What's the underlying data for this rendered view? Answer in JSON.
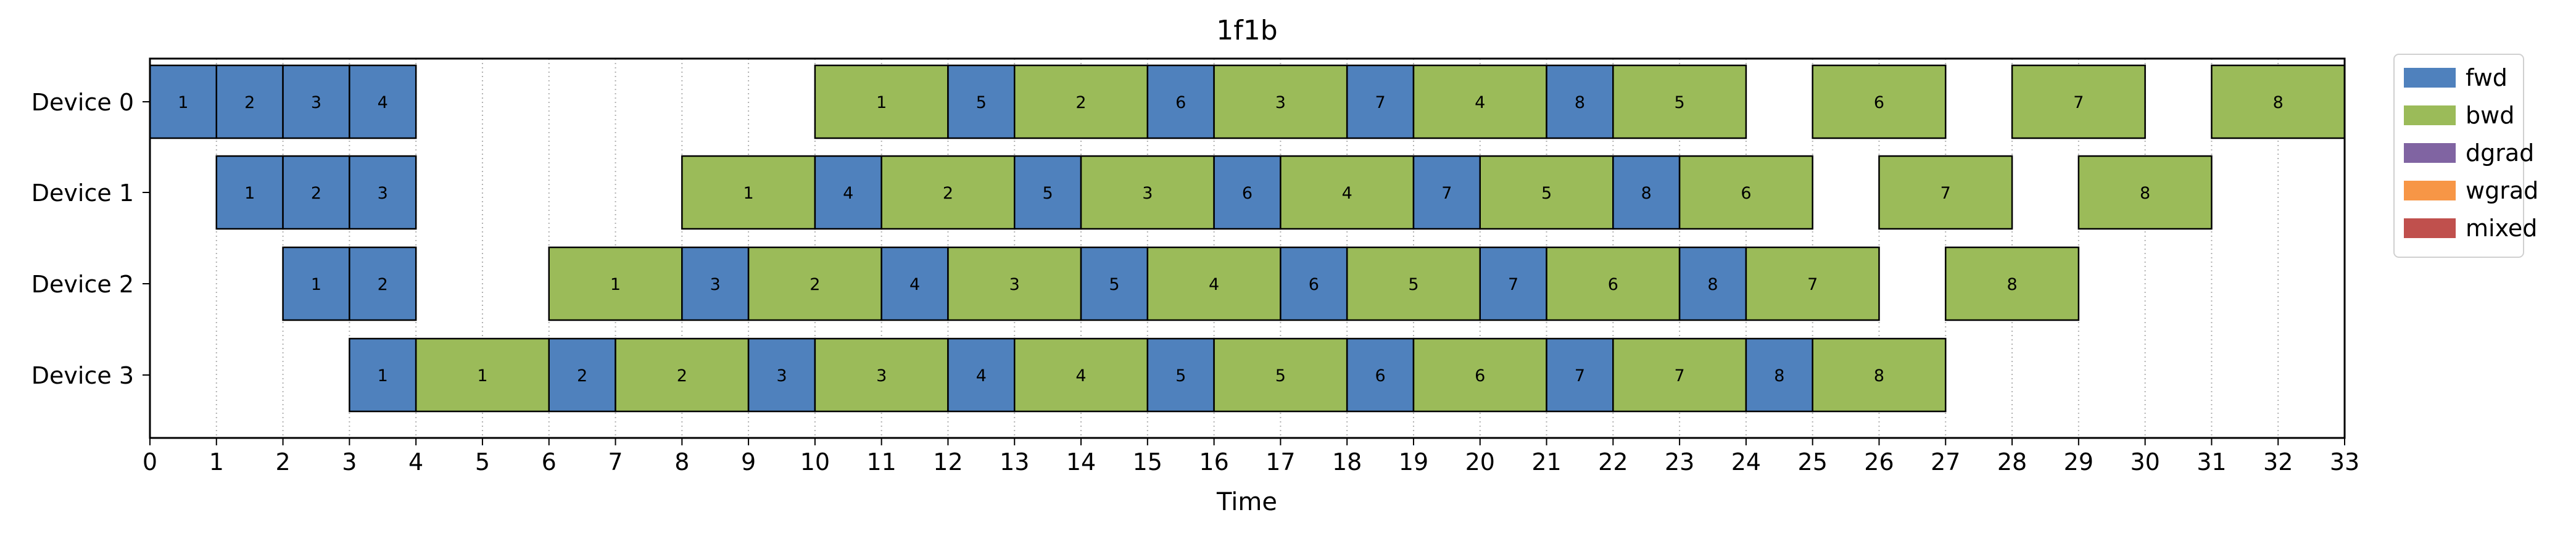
{
  "chart_data": {
    "type": "gantt",
    "title": "1f1b",
    "xlabel": "Time",
    "ylabel": "",
    "xlim": [
      0,
      33
    ],
    "x_ticks": [
      0,
      1,
      2,
      3,
      4,
      5,
      6,
      7,
      8,
      9,
      10,
      11,
      12,
      13,
      14,
      15,
      16,
      17,
      18,
      19,
      20,
      21,
      22,
      23,
      24,
      25,
      26,
      27,
      28,
      29,
      30,
      31,
      32,
      33
    ],
    "grid": "vertical dotted at each integer tick",
    "categories": [
      "Device 0",
      "Device 1",
      "Device 2",
      "Device 3"
    ],
    "legend": {
      "placement": "outside top-right",
      "entries": [
        {
          "label": "fwd",
          "color": "#4f81bd"
        },
        {
          "label": "bwd",
          "color": "#9bbb59"
        },
        {
          "label": "dgrad",
          "color": "#8064a2"
        },
        {
          "label": "wgrad",
          "color": "#f79646"
        },
        {
          "label": "mixed",
          "color": "#c0504d"
        }
      ]
    },
    "colors": {
      "fwd": "#4f81bd",
      "bwd": "#9bbb59",
      "dgrad": "#8064a2",
      "wgrad": "#f79646",
      "mixed": "#c0504d"
    },
    "series": [
      {
        "name": "Device 0",
        "tasks": [
          {
            "type": "fwd",
            "label": "1",
            "start": 0,
            "end": 1
          },
          {
            "type": "fwd",
            "label": "2",
            "start": 1,
            "end": 2
          },
          {
            "type": "fwd",
            "label": "3",
            "start": 2,
            "end": 3
          },
          {
            "type": "fwd",
            "label": "4",
            "start": 3,
            "end": 4
          },
          {
            "type": "bwd",
            "label": "1",
            "start": 10,
            "end": 12
          },
          {
            "type": "fwd",
            "label": "5",
            "start": 12,
            "end": 13
          },
          {
            "type": "bwd",
            "label": "2",
            "start": 13,
            "end": 15
          },
          {
            "type": "fwd",
            "label": "6",
            "start": 15,
            "end": 16
          },
          {
            "type": "bwd",
            "label": "3",
            "start": 16,
            "end": 18
          },
          {
            "type": "fwd",
            "label": "7",
            "start": 18,
            "end": 19
          },
          {
            "type": "bwd",
            "label": "4",
            "start": 19,
            "end": 21
          },
          {
            "type": "fwd",
            "label": "8",
            "start": 21,
            "end": 22
          },
          {
            "type": "bwd",
            "label": "5",
            "start": 22,
            "end": 24
          },
          {
            "type": "bwd",
            "label": "6",
            "start": 25,
            "end": 27
          },
          {
            "type": "bwd",
            "label": "7",
            "start": 28,
            "end": 30
          },
          {
            "type": "bwd",
            "label": "8",
            "start": 31,
            "end": 33
          }
        ]
      },
      {
        "name": "Device 1",
        "tasks": [
          {
            "type": "fwd",
            "label": "1",
            "start": 1,
            "end": 2
          },
          {
            "type": "fwd",
            "label": "2",
            "start": 2,
            "end": 3
          },
          {
            "type": "fwd",
            "label": "3",
            "start": 3,
            "end": 4
          },
          {
            "type": "bwd",
            "label": "1",
            "start": 8,
            "end": 10
          },
          {
            "type": "fwd",
            "label": "4",
            "start": 10,
            "end": 11
          },
          {
            "type": "bwd",
            "label": "2",
            "start": 11,
            "end": 13
          },
          {
            "type": "fwd",
            "label": "5",
            "start": 13,
            "end": 14
          },
          {
            "type": "bwd",
            "label": "3",
            "start": 14,
            "end": 16
          },
          {
            "type": "fwd",
            "label": "6",
            "start": 16,
            "end": 17
          },
          {
            "type": "bwd",
            "label": "4",
            "start": 17,
            "end": 19
          },
          {
            "type": "fwd",
            "label": "7",
            "start": 19,
            "end": 20
          },
          {
            "type": "bwd",
            "label": "5",
            "start": 20,
            "end": 22
          },
          {
            "type": "fwd",
            "label": "8",
            "start": 22,
            "end": 23
          },
          {
            "type": "bwd",
            "label": "6",
            "start": 23,
            "end": 25
          },
          {
            "type": "bwd",
            "label": "7",
            "start": 26,
            "end": 28
          },
          {
            "type": "bwd",
            "label": "8",
            "start": 29,
            "end": 31
          }
        ]
      },
      {
        "name": "Device 2",
        "tasks": [
          {
            "type": "fwd",
            "label": "1",
            "start": 2,
            "end": 3
          },
          {
            "type": "fwd",
            "label": "2",
            "start": 3,
            "end": 4
          },
          {
            "type": "bwd",
            "label": "1",
            "start": 6,
            "end": 8
          },
          {
            "type": "fwd",
            "label": "3",
            "start": 8,
            "end": 9
          },
          {
            "type": "bwd",
            "label": "2",
            "start": 9,
            "end": 11
          },
          {
            "type": "fwd",
            "label": "4",
            "start": 11,
            "end": 12
          },
          {
            "type": "bwd",
            "label": "3",
            "start": 12,
            "end": 14
          },
          {
            "type": "fwd",
            "label": "5",
            "start": 14,
            "end": 15
          },
          {
            "type": "bwd",
            "label": "4",
            "start": 15,
            "end": 17
          },
          {
            "type": "fwd",
            "label": "6",
            "start": 17,
            "end": 18
          },
          {
            "type": "bwd",
            "label": "5",
            "start": 18,
            "end": 20
          },
          {
            "type": "fwd",
            "label": "7",
            "start": 20,
            "end": 21
          },
          {
            "type": "bwd",
            "label": "6",
            "start": 21,
            "end": 23
          },
          {
            "type": "fwd",
            "label": "8",
            "start": 23,
            "end": 24
          },
          {
            "type": "bwd",
            "label": "7",
            "start": 24,
            "end": 26
          },
          {
            "type": "bwd",
            "label": "8",
            "start": 27,
            "end": 29
          }
        ]
      },
      {
        "name": "Device 3",
        "tasks": [
          {
            "type": "fwd",
            "label": "1",
            "start": 3,
            "end": 4
          },
          {
            "type": "bwd",
            "label": "1",
            "start": 4,
            "end": 6
          },
          {
            "type": "fwd",
            "label": "2",
            "start": 6,
            "end": 7
          },
          {
            "type": "bwd",
            "label": "2",
            "start": 7,
            "end": 9
          },
          {
            "type": "fwd",
            "label": "3",
            "start": 9,
            "end": 10
          },
          {
            "type": "bwd",
            "label": "3",
            "start": 10,
            "end": 12
          },
          {
            "type": "fwd",
            "label": "4",
            "start": 12,
            "end": 13
          },
          {
            "type": "bwd",
            "label": "4",
            "start": 13,
            "end": 15
          },
          {
            "type": "fwd",
            "label": "5",
            "start": 15,
            "end": 16
          },
          {
            "type": "bwd",
            "label": "5",
            "start": 16,
            "end": 18
          },
          {
            "type": "fwd",
            "label": "6",
            "start": 18,
            "end": 19
          },
          {
            "type": "bwd",
            "label": "6",
            "start": 19,
            "end": 21
          },
          {
            "type": "fwd",
            "label": "7",
            "start": 21,
            "end": 22
          },
          {
            "type": "bwd",
            "label": "7",
            "start": 22,
            "end": 24
          },
          {
            "type": "fwd",
            "label": "8",
            "start": 24,
            "end": 25
          },
          {
            "type": "bwd",
            "label": "8",
            "start": 25,
            "end": 27
          }
        ]
      }
    ]
  }
}
